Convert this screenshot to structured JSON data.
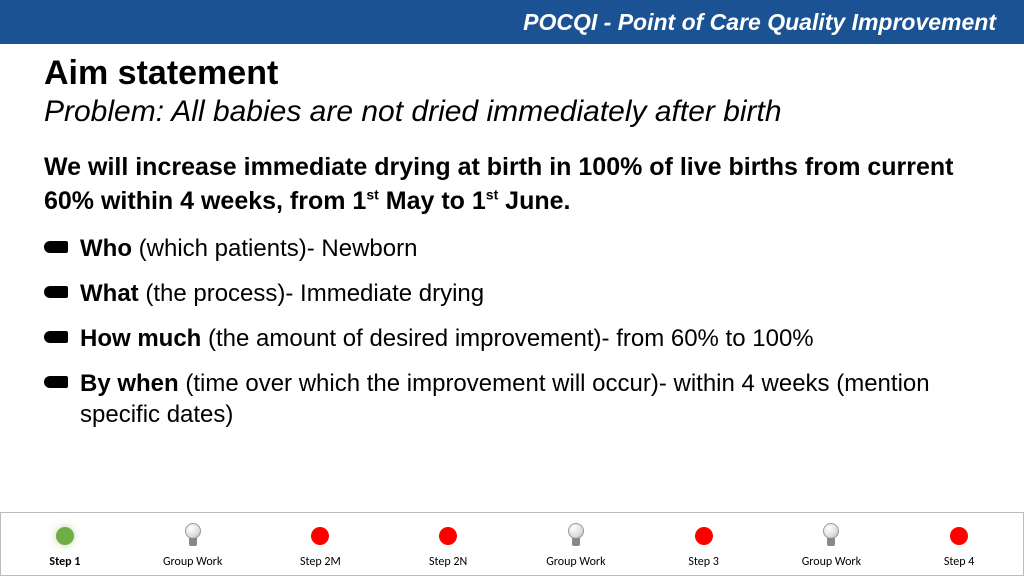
{
  "header": {
    "title": "POCQI - Point of Care Quality Improvement"
  },
  "slide": {
    "title": "Aim statement",
    "subtitle": "Problem: All babies are not dried immediately after birth",
    "aim_pre": "We will increase immediate drying at birth in 100% of live births from current 60%  within 4 weeks, from 1",
    "aim_sup1": "st",
    "aim_mid": " May to 1",
    "aim_sup2": "st",
    "aim_post": " June.",
    "bullets": [
      {
        "label": "Who",
        "rest": " (which patients)- Newborn"
      },
      {
        "label": "What",
        "rest": " (the process)- Immediate drying"
      },
      {
        "label": "How much",
        "rest": " (the amount of desired improvement)- from 60% to 100%"
      },
      {
        "label": "By when",
        "rest": " (time over which the improvement will occur)- within 4 weeks (mention specific dates)"
      }
    ]
  },
  "footer": {
    "items": [
      {
        "label": "Step 1",
        "icon": "dot-green",
        "active": true
      },
      {
        "label": "Group Work",
        "icon": "bulb",
        "active": false
      },
      {
        "label": "Step 2M",
        "icon": "dot-red",
        "active": false
      },
      {
        "label": "Step 2N",
        "icon": "dot-red",
        "active": false
      },
      {
        "label": "Group Work",
        "icon": "bulb",
        "active": false
      },
      {
        "label": "Step 3",
        "icon": "dot-red",
        "active": false
      },
      {
        "label": "Group Work",
        "icon": "bulb",
        "active": false
      },
      {
        "label": "Step 4",
        "icon": "dot-red",
        "active": false
      }
    ]
  },
  "colors": {
    "header_bg": "#1a5294",
    "dot_green": "#70ad47",
    "dot_red": "#ff0000"
  }
}
